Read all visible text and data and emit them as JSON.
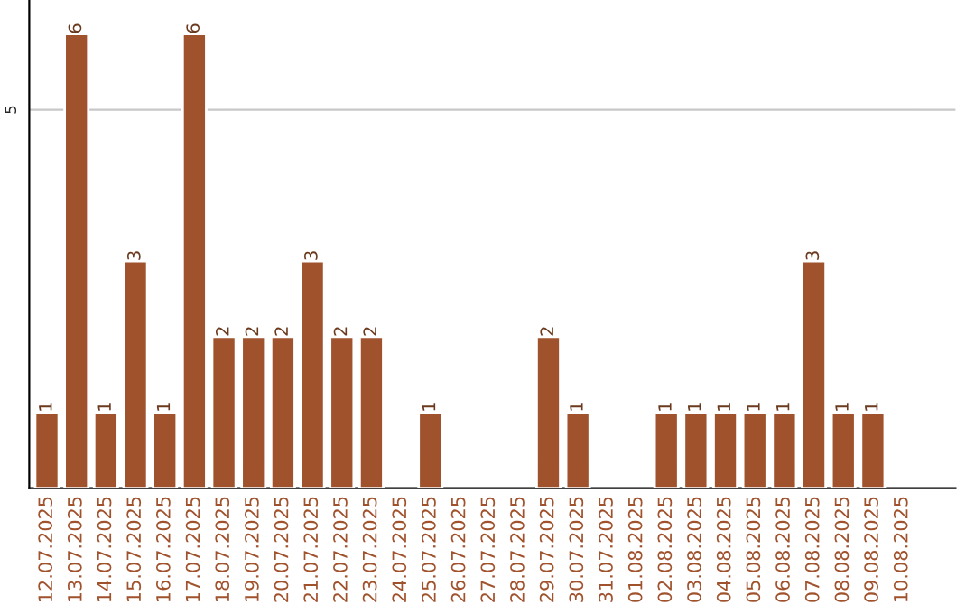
{
  "chart_data": {
    "type": "bar",
    "categories": [
      "12.07.2025",
      "13.07.2025",
      "14.07.2025",
      "15.07.2025",
      "16.07.2025",
      "17.07.2025",
      "18.07.2025",
      "19.07.2025",
      "20.07.2025",
      "21.07.2025",
      "22.07.2025",
      "23.07.2025",
      "24.07.2025",
      "25.07.2025",
      "26.07.2025",
      "27.07.2025",
      "28.07.2025",
      "29.07.2025",
      "30.07.2025",
      "31.07.2025",
      "01.08.2025",
      "02.08.2025",
      "03.08.2025",
      "04.08.2025",
      "05.08.2025",
      "06.08.2025",
      "07.08.2025",
      "08.08.2025",
      "09.08.2025",
      "10.08.2025"
    ],
    "values": [
      1,
      6,
      1,
      3,
      1,
      6,
      2,
      2,
      2,
      3,
      2,
      2,
      null,
      1,
      null,
      null,
      null,
      2,
      1,
      null,
      null,
      1,
      1,
      1,
      1,
      1,
      3,
      1,
      1,
      null
    ],
    "value_labels": [
      "1",
      "6",
      "1",
      "3",
      "1",
      "6",
      "2",
      "2",
      "2",
      "3",
      "2",
      "2",
      null,
      "1",
      null,
      null,
      null,
      "2",
      "1",
      null,
      null,
      "1",
      "1",
      "1",
      "1",
      "1",
      "3",
      "1",
      "1",
      null
    ],
    "color": "#a0522d",
    "ylim": [
      0,
      6.45
    ],
    "yticks": [
      5
    ],
    "grid": "y"
  }
}
